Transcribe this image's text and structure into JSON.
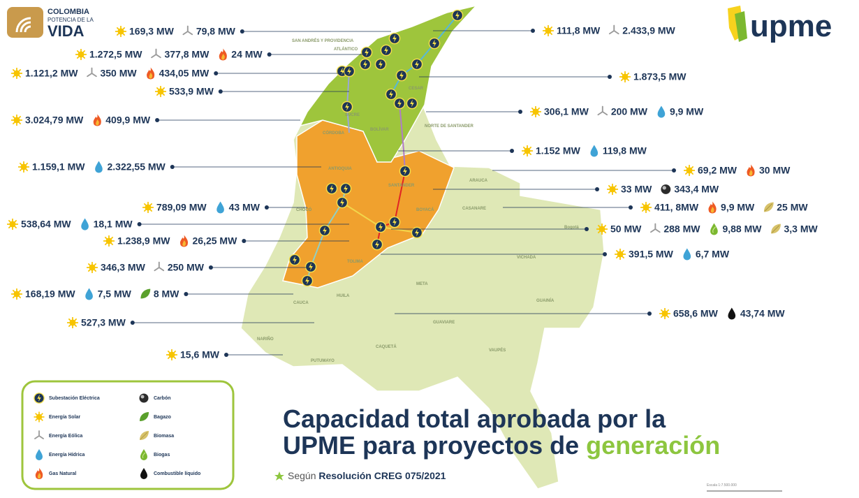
{
  "header": {
    "logo_left": [
      "COLOMBIA",
      "POTENCIA DE LA",
      "VIDA"
    ],
    "logo_right": "upme"
  },
  "title": {
    "line1": "Capacidad total aprobada por la",
    "line2": "UPME para proyectos de",
    "highlight": "generación"
  },
  "note": {
    "prefix": "Según",
    "source": "Resolución CREG 075/2021"
  },
  "scale": "Escala 1:7.500.000",
  "legend": [
    {
      "icon": "substation",
      "label": "Subestación Eléctrica"
    },
    {
      "icon": "solar",
      "label": "Energía Solar"
    },
    {
      "icon": "wind",
      "label": "Energía Eólica"
    },
    {
      "icon": "water",
      "label": "Energía Hídrica"
    },
    {
      "icon": "gas",
      "label": "Gas Natural"
    },
    {
      "icon": "carbon",
      "label": "Carbón"
    },
    {
      "icon": "bagazo",
      "label": "Bagazo"
    },
    {
      "icon": "biomasa",
      "label": "Biomasa"
    },
    {
      "icon": "biogas",
      "label": "Biogas"
    },
    {
      "icon": "liquid",
      "label": "Combustible líquido"
    }
  ],
  "map": {
    "regions": [
      "SAN ANDRÉS Y PROVIDENCIA",
      "ATLÁNTICO",
      "CÓRDOBA",
      "SUCRE",
      "BOLÍVAR",
      "CESAR",
      "NORTE DE SANTANDER",
      "ANTIOQUIA",
      "SANTANDER",
      "BOYACÁ",
      "ARAUCA",
      "CASANARE",
      "VICHADA",
      "GUAINÍA",
      "META",
      "GUAVIARE",
      "VAUPÉS",
      "CAQUETÁ",
      "PUTUMAYO",
      "NARIÑO",
      "CAUCA",
      "HUILA",
      "TOLIMA",
      "CHOCÓ",
      "Bogotá"
    ]
  },
  "callouts": [
    {
      "items": [
        {
          "icon": "solar",
          "text": "169,3 MW"
        },
        {
          "icon": "wind",
          "text": "79,8 MW"
        }
      ]
    },
    {
      "items": [
        {
          "icon": "solar",
          "text": "1.272,5 MW"
        },
        {
          "icon": "wind",
          "text": "377,8 MW"
        },
        {
          "icon": "gas",
          "text": "24 MW"
        }
      ]
    },
    {
      "items": [
        {
          "icon": "solar",
          "text": "1.121,2 MW"
        },
        {
          "icon": "wind",
          "text": "350 MW"
        },
        {
          "icon": "gas",
          "text": "434,05 MW"
        }
      ]
    },
    {
      "items": [
        {
          "icon": "solar",
          "text": "533,9 MW"
        }
      ]
    },
    {
      "items": [
        {
          "icon": "solar",
          "text": "3.024,79 MW"
        },
        {
          "icon": "gas",
          "text": "409,9 MW"
        }
      ]
    },
    {
      "items": [
        {
          "icon": "solar",
          "text": "1.159,1 MW"
        },
        {
          "icon": "water",
          "text": "2.322,55 MW"
        }
      ]
    },
    {
      "items": [
        {
          "icon": "solar",
          "text": "789,09 MW"
        },
        {
          "icon": "water",
          "text": "43 MW"
        }
      ]
    },
    {
      "items": [
        {
          "icon": "solar",
          "text": "538,64 MW"
        },
        {
          "icon": "water",
          "text": "18,1 MW"
        }
      ]
    },
    {
      "items": [
        {
          "icon": "solar",
          "text": "1.238,9 MW"
        },
        {
          "icon": "gas",
          "text": "26,25 MW"
        }
      ]
    },
    {
      "items": [
        {
          "icon": "solar",
          "text": "346,3 MW"
        },
        {
          "icon": "wind",
          "text": "250 MW"
        }
      ]
    },
    {
      "items": [
        {
          "icon": "solar",
          "text": "168,19 MW"
        },
        {
          "icon": "water",
          "text": "7,5 MW"
        },
        {
          "icon": "bagazo",
          "text": "8 MW"
        }
      ]
    },
    {
      "items": [
        {
          "icon": "solar",
          "text": "527,3 MW"
        }
      ]
    },
    {
      "items": [
        {
          "icon": "solar",
          "text": "15,6 MW"
        }
      ]
    },
    {
      "items": [
        {
          "icon": "solar",
          "text": "111,8 MW"
        },
        {
          "icon": "wind",
          "text": "2.433,9 MW"
        }
      ]
    },
    {
      "items": [
        {
          "icon": "solar",
          "text": "1.873,5 MW"
        }
      ]
    },
    {
      "items": [
        {
          "icon": "solar",
          "text": "306,1 MW"
        },
        {
          "icon": "wind",
          "text": "200 MW"
        },
        {
          "icon": "water",
          "text": "9,9 MW"
        }
      ]
    },
    {
      "items": [
        {
          "icon": "solar",
          "text": "1.152 MW"
        },
        {
          "icon": "water",
          "text": "119,8 MW"
        }
      ]
    },
    {
      "items": [
        {
          "icon": "solar",
          "text": "69,2 MW"
        },
        {
          "icon": "gas",
          "text": "30 MW"
        }
      ]
    },
    {
      "items": [
        {
          "icon": "solar",
          "text": "33 MW"
        },
        {
          "icon": "carbon",
          "text": "343,4 MW"
        }
      ]
    },
    {
      "items": [
        {
          "icon": "solar",
          "text": "411, 8MW"
        },
        {
          "icon": "gas",
          "text": "9,9 MW"
        },
        {
          "icon": "biomasa",
          "text": "25 MW"
        }
      ]
    },
    {
      "items": [
        {
          "icon": "solar",
          "text": "50 MW"
        },
        {
          "icon": "wind",
          "text": "288 MW"
        },
        {
          "icon": "biogas",
          "text": "9,88 MW"
        },
        {
          "icon": "biomasa",
          "text": "3,3 MW"
        }
      ]
    },
    {
      "items": [
        {
          "icon": "solar",
          "text": "391,5 MW"
        },
        {
          "icon": "water",
          "text": "6,7 MW"
        }
      ]
    },
    {
      "items": [
        {
          "icon": "solar",
          "text": "658,6 MW"
        },
        {
          "icon": "liquid",
          "text": "43,74 MW"
        }
      ]
    }
  ]
}
